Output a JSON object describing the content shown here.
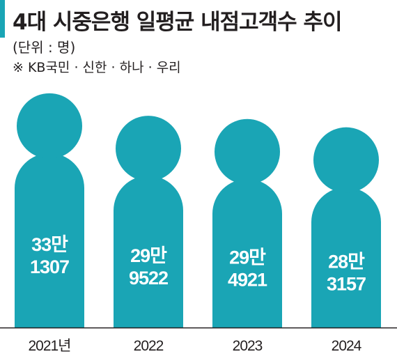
{
  "header": {
    "title": "4대 시중은행 일평균 내점고객수 추이",
    "unit": "(단위 : 명)",
    "note": "※ KB국민 · 신한 · 하나 · 우리"
  },
  "colors": {
    "bar": "#1aa5b5",
    "accent": "#1aa5b5",
    "axis": "#231f20"
  },
  "chart_data": {
    "type": "bar",
    "title": "4대 시중은행 일평균 내점고객수 추이",
    "unit": "(단위 : 명)",
    "note": "※ KB국민 · 신한 · 하나 · 우리",
    "categories": [
      "2021년",
      "2022",
      "2023",
      "2024"
    ],
    "values": [
      331307,
      299522,
      294921,
      283157
    ],
    "value_labels": [
      [
        "33만",
        "1307"
      ],
      [
        "29만",
        "9522"
      ],
      [
        "29만",
        "4921"
      ],
      [
        "28만",
        "3157"
      ]
    ],
    "xlabel": "",
    "ylabel": "",
    "ylim": [
      0,
      340000
    ],
    "grid": false,
    "legend": "none"
  }
}
